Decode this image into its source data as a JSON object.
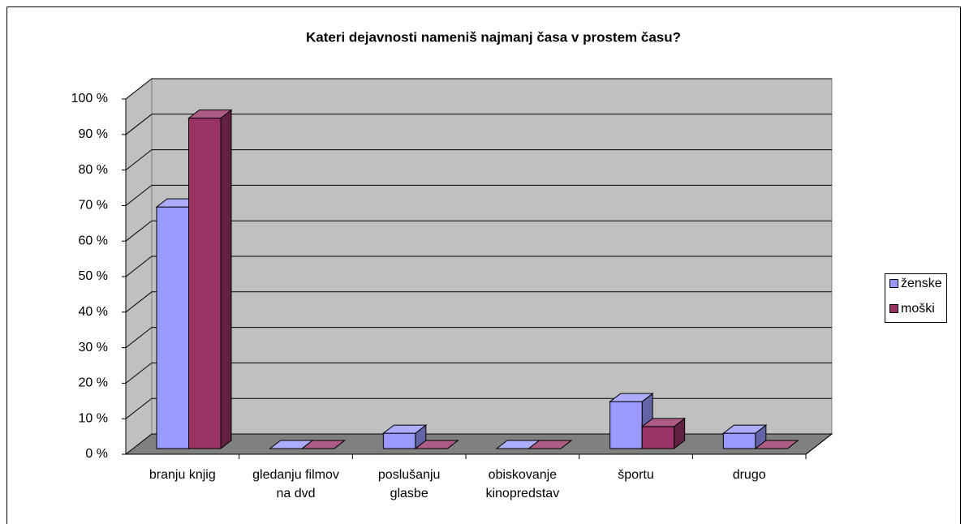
{
  "chart_data": {
    "type": "bar3d",
    "title": "Kateri dejavnosti nameniš najmanj časa v prostem času?",
    "categories": [
      "branju knjig",
      "gledanju filmov na dvd",
      "poslušanju glasbe",
      "obiskovanje kinopredstav",
      "športu",
      "drugo"
    ],
    "series": [
      {
        "name": "ženske",
        "color": "#9999ff",
        "values": [
          68,
          0,
          4.3,
          0,
          13.2,
          4.3
        ]
      },
      {
        "name": "moški",
        "color": "#993366",
        "values": [
          93,
          0,
          0,
          0,
          6.2,
          0
        ]
      }
    ],
    "ylim": [
      0,
      100
    ],
    "yticks": [
      {
        "value": 0,
        "label": "0 %"
      },
      {
        "value": 10,
        "label": "10 %"
      },
      {
        "value": 20,
        "label": "20 %"
      },
      {
        "value": 30,
        "label": "30 %"
      },
      {
        "value": 40,
        "label": "40 %"
      },
      {
        "value": 50,
        "label": "50 %"
      },
      {
        "value": 60,
        "label": "60 %"
      },
      {
        "value": 70,
        "label": "70 %"
      },
      {
        "value": 80,
        "label": "80 %"
      },
      {
        "value": 90,
        "label": "90 %"
      },
      {
        "value": 100,
        "label": "100 %"
      }
    ],
    "grid": true,
    "legend": "right"
  }
}
